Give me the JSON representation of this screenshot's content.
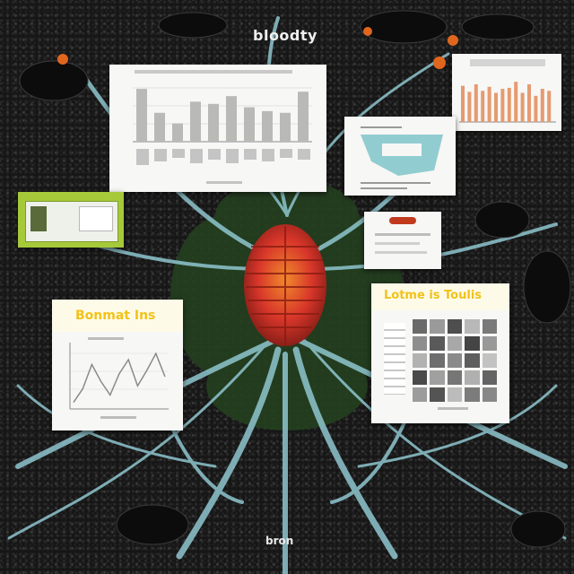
{
  "scene": {
    "title": "bloodty",
    "footer_label": "bron",
    "colors": {
      "background": "#161616",
      "vein": "#8fc6cf",
      "organ_red": "#d8362a",
      "organ_orange": "#e8722a",
      "leaf_green": "#2f5a2a",
      "panel": "#f7f7f5",
      "panel_green": "#a6c93a",
      "header_yellow": "#f2d54a",
      "bar_gray": "#b9b9b6",
      "bar_orange": "#e59b72",
      "teal_shape": "#7fc6c9"
    }
  },
  "panels": {
    "top_bar_chart": {
      "chart_data": {
        "type": "bar",
        "values": [
          95,
          52,
          33,
          72,
          68,
          82,
          62,
          55,
          52,
          90
        ],
        "ylim": [
          0,
          100
        ]
      }
    },
    "top_right_bar_chart": {
      "chart_data": {
        "type": "bar",
        "values": [
          72,
          60,
          75,
          62,
          70,
          58,
          66,
          68,
          80,
          58,
          75,
          52,
          66,
          62
        ],
        "ylim": [
          0,
          100
        ]
      }
    },
    "left_line_chart": {
      "header": "Bonmat Ins",
      "chart_data": {
        "type": "line",
        "values": [
          8,
          30,
          70,
          42,
          20,
          55,
          78,
          35,
          60,
          88,
          50
        ],
        "ylim": [
          0,
          100
        ]
      }
    },
    "right_grid_panel": {
      "header": "Lotme is Toulis",
      "grid_shades": [
        "#6a6a6a",
        "#9a9a9a",
        "#4e4e4e",
        "#b8b8b8",
        "#7a7a7a",
        "#8e8e8e",
        "#5a5a5a",
        "#a8a8a8",
        "#444444",
        "#999999",
        "#b2b2b2",
        "#6e6e6e",
        "#8a8a8a",
        "#5e5e5e",
        "#c2c2c2",
        "#4a4a4a",
        "#a0a0a0",
        "#767676",
        "#b0b0b0",
        "#646464",
        "#9c9c9c",
        "#545454",
        "#bcbcbc",
        "#7c7c7c",
        "#888888"
      ]
    }
  }
}
